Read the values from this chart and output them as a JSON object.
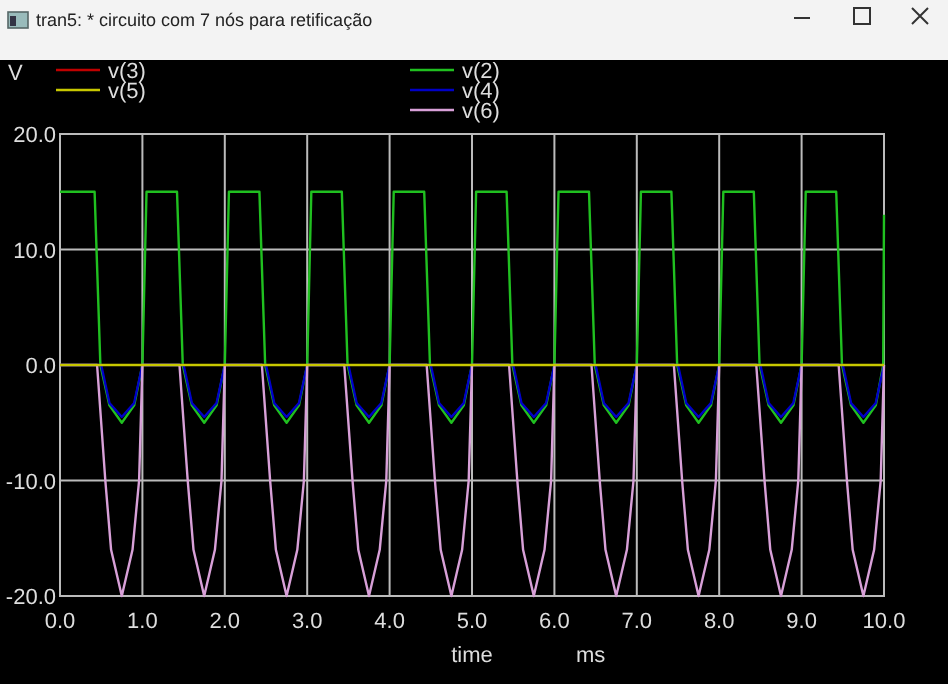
{
  "chart_data": {
    "type": "line",
    "title": "tran5: * circuito com 7 nós para retificação",
    "xlabel": "time",
    "ylabel": "V",
    "annotations": [
      "ms"
    ],
    "xlim": [
      0,
      10
    ],
    "ylim": [
      -20,
      20
    ],
    "xticks": [
      {
        "value": 0,
        "label": "0.0"
      },
      {
        "value": 1,
        "label": "1.0"
      },
      {
        "value": 2,
        "label": "2.0"
      },
      {
        "value": 3,
        "label": "3.0"
      },
      {
        "value": 4,
        "label": "4.0"
      },
      {
        "value": 5,
        "label": "5.0"
      },
      {
        "value": 6,
        "label": "6.0"
      },
      {
        "value": 7,
        "label": "7.0"
      },
      {
        "value": 8,
        "label": "8.0"
      },
      {
        "value": 9,
        "label": "9.0"
      },
      {
        "value": 10,
        "label": "10.0"
      }
    ],
    "yticks": [
      {
        "value": -20,
        "label": "-20.0"
      },
      {
        "value": -10,
        "label": "-10.0"
      },
      {
        "value": 0,
        "label": "0.0"
      },
      {
        "value": 10,
        "label": "10.0"
      },
      {
        "value": 20,
        "label": "20.0"
      }
    ],
    "grid": true,
    "legend": "top",
    "marker": "none",
    "line_style": "solid",
    "series": [
      {
        "name": "v(3)",
        "color": "#c00000"
      },
      {
        "name": "v(5)",
        "color": "#c8c800",
        "x": [
          0,
          10
        ],
        "values": [
          0,
          0
        ]
      },
      {
        "name": "v(2)",
        "color": "#20c020",
        "x": [
          0,
          0.42,
          0.49,
          0.6,
          0.75,
          0.9,
          1.0,
          1.05,
          1.42,
          1.49,
          1.6,
          1.75,
          1.9,
          2.0,
          2.05,
          2.42,
          2.49,
          2.6,
          2.75,
          2.9,
          3.0,
          3.05,
          3.42,
          3.49,
          3.6,
          3.75,
          3.9,
          4.0,
          4.05,
          4.42,
          4.49,
          4.6,
          4.75,
          4.9,
          5.0,
          5.05,
          5.42,
          5.49,
          5.6,
          5.75,
          5.9,
          6.0,
          6.05,
          6.42,
          6.49,
          6.6,
          6.75,
          6.9,
          7.0,
          7.05,
          7.42,
          7.49,
          7.6,
          7.75,
          7.9,
          8.0,
          8.05,
          8.42,
          8.49,
          8.6,
          8.75,
          8.9,
          9.0,
          9.05,
          9.42,
          9.49,
          9.6,
          9.75,
          9.9,
          9.99,
          10
        ],
        "values": [
          15,
          15,
          0,
          -3.5,
          -5,
          -3.5,
          0,
          15,
          15,
          0,
          -3.5,
          -5,
          -3.5,
          0,
          15,
          15,
          0,
          -3.5,
          -5,
          -3.5,
          0,
          15,
          15,
          0,
          -3.5,
          -5,
          -3.5,
          0,
          15,
          15,
          0,
          -3.5,
          -5,
          -3.5,
          0,
          15,
          15,
          0,
          -3.5,
          -5,
          -3.5,
          0,
          15,
          15,
          0,
          -3.5,
          -5,
          -3.5,
          0,
          15,
          15,
          0,
          -3.5,
          -5,
          -3.5,
          0,
          15,
          15,
          0,
          -3.5,
          -5,
          -3.5,
          0,
          15,
          15,
          0,
          -3.5,
          -5,
          -3.5,
          0,
          13
        ]
      },
      {
        "name": "v(4)",
        "color": "#0000c8",
        "x": [
          0,
          0.5,
          0.6,
          0.75,
          0.9,
          1.0,
          1.5,
          1.6,
          1.75,
          1.9,
          2.0,
          2.5,
          2.6,
          2.75,
          2.9,
          3.0,
          3.5,
          3.6,
          3.75,
          3.9,
          4.0,
          4.5,
          4.6,
          4.75,
          4.9,
          5.0,
          5.5,
          5.6,
          5.75,
          5.9,
          6.0,
          6.5,
          6.6,
          6.75,
          6.9,
          7.0,
          7.5,
          7.6,
          7.75,
          7.9,
          8.0,
          8.5,
          8.6,
          8.75,
          8.9,
          9.0,
          9.5,
          9.6,
          9.75,
          9.9,
          10
        ],
        "values": [
          0,
          0,
          -3.3,
          -4.5,
          -3.3,
          0,
          0,
          -3.3,
          -4.5,
          -3.3,
          0,
          0,
          -3.3,
          -4.5,
          -3.3,
          0,
          0,
          -3.3,
          -4.5,
          -3.3,
          0,
          0,
          -3.3,
          -4.5,
          -3.3,
          0,
          0,
          -3.3,
          -4.5,
          -3.3,
          0,
          0,
          -3.3,
          -4.5,
          -3.3,
          0,
          0,
          -3.3,
          -4.5,
          -3.3,
          0,
          0,
          -3.3,
          -4.5,
          -3.3,
          0,
          0,
          -3.3,
          -4.5,
          -3.3,
          0
        ]
      },
      {
        "name": "v(6)",
        "color": "#d8a0d8",
        "x": [
          0,
          0.45,
          0.55,
          0.62,
          0.75,
          0.88,
          0.96,
          1.0,
          1.45,
          1.55,
          1.62,
          1.75,
          1.88,
          1.96,
          2.0,
          2.45,
          2.55,
          2.62,
          2.75,
          2.88,
          2.96,
          3.0,
          3.45,
          3.55,
          3.62,
          3.75,
          3.88,
          3.96,
          4.0,
          4.45,
          4.55,
          4.62,
          4.75,
          4.88,
          4.96,
          5.0,
          5.45,
          5.55,
          5.62,
          5.75,
          5.88,
          5.96,
          6.0,
          6.45,
          6.55,
          6.62,
          6.75,
          6.88,
          6.96,
          7.0,
          7.45,
          7.55,
          7.62,
          7.75,
          7.88,
          7.96,
          8.0,
          8.45,
          8.55,
          8.62,
          8.75,
          8.88,
          8.96,
          9.0,
          9.45,
          9.55,
          9.62,
          9.75,
          9.88,
          9.96,
          10
        ],
        "values": [
          0,
          0,
          -10,
          -16,
          -20,
          -16,
          -10,
          0,
          0,
          -10,
          -16,
          -20,
          -16,
          -10,
          0,
          0,
          -10,
          -16,
          -20,
          -16,
          -10,
          0,
          0,
          -10,
          -16,
          -20,
          -16,
          -10,
          0,
          0,
          -10,
          -16,
          -20,
          -16,
          -10,
          0,
          0,
          -10,
          -16,
          -20,
          -16,
          -10,
          0,
          0,
          -10,
          -16,
          -20,
          -16,
          -10,
          0,
          0,
          -10,
          -16,
          -20,
          -16,
          -10,
          0,
          0,
          -10,
          -16,
          -20,
          -16,
          -10,
          0,
          0,
          -10,
          -16,
          -20,
          -16,
          -10,
          0
        ]
      }
    ]
  }
}
